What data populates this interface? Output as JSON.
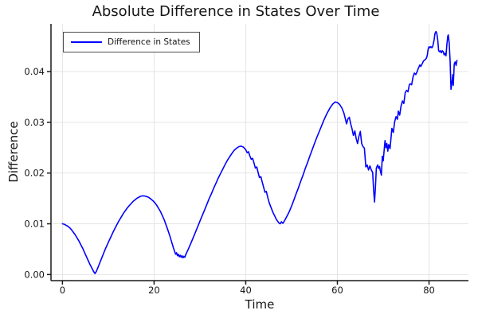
{
  "chart_data": {
    "type": "line",
    "title": "Absolute Difference in States Over Time",
    "xlabel": "Time",
    "ylabel": "Difference",
    "x_ticks": [
      0,
      20,
      40,
      60,
      80
    ],
    "x_tick_labels": [
      "0",
      "20",
      "40",
      "60",
      "80"
    ],
    "y_ticks": [
      0.0,
      0.01,
      0.02,
      0.03,
      0.04
    ],
    "y_tick_labels": [
      "0.00",
      "0.01",
      "0.02",
      "0.03",
      "0.04"
    ],
    "xlim": [
      -2.5,
      88.6
    ],
    "ylim": [
      -0.0012,
      0.0494
    ],
    "grid": true,
    "legend_position": "top-left",
    "series": [
      {
        "name": "Difference in States",
        "color": "#0000ff",
        "points": [
          [
            0,
            0.01
          ],
          [
            0.4,
            0.0099
          ],
          [
            0.8,
            0.0097
          ],
          [
            1.2,
            0.0095
          ],
          [
            1.6,
            0.0092
          ],
          [
            2,
            0.0088
          ],
          [
            2.4,
            0.0083
          ],
          [
            2.8,
            0.0078
          ],
          [
            3.2,
            0.0072
          ],
          [
            3.6,
            0.0066
          ],
          [
            4,
            0.0059
          ],
          [
            4.4,
            0.0052
          ],
          [
            4.8,
            0.0044
          ],
          [
            5.2,
            0.0036
          ],
          [
            5.6,
            0.0028
          ],
          [
            6,
            0.002
          ],
          [
            6.4,
            0.0013
          ],
          [
            6.8,
            0.0006
          ],
          [
            7.1,
            0.0002
          ],
          [
            7.4,
            0.0006
          ],
          [
            7.8,
            0.0015
          ],
          [
            8.2,
            0.0024
          ],
          [
            8.6,
            0.0033
          ],
          [
            9,
            0.0042
          ],
          [
            9.4,
            0.0051
          ],
          [
            9.8,
            0.0059
          ],
          [
            10.2,
            0.0067
          ],
          [
            10.6,
            0.0075
          ],
          [
            11,
            0.0083
          ],
          [
            11.4,
            0.009
          ],
          [
            11.8,
            0.0097
          ],
          [
            12.2,
            0.0104
          ],
          [
            12.6,
            0.011
          ],
          [
            13,
            0.0116
          ],
          [
            13.4,
            0.0122
          ],
          [
            13.8,
            0.0127
          ],
          [
            14.2,
            0.0132
          ],
          [
            14.6,
            0.0136
          ],
          [
            15,
            0.014
          ],
          [
            15.4,
            0.0144
          ],
          [
            15.8,
            0.0147
          ],
          [
            16.2,
            0.015
          ],
          [
            16.6,
            0.0152
          ],
          [
            17,
            0.0154
          ],
          [
            17.4,
            0.0155
          ],
          [
            17.8,
            0.0155
          ],
          [
            18.2,
            0.0154
          ],
          [
            18.6,
            0.0153
          ],
          [
            19,
            0.0151
          ],
          [
            19.4,
            0.0148
          ],
          [
            19.8,
            0.0145
          ],
          [
            20.2,
            0.0141
          ],
          [
            20.6,
            0.0136
          ],
          [
            21,
            0.013
          ],
          [
            21.4,
            0.0124
          ],
          [
            21.8,
            0.0116
          ],
          [
            22.2,
            0.0108
          ],
          [
            22.6,
            0.0098
          ],
          [
            23,
            0.0088
          ],
          [
            23.4,
            0.0077
          ],
          [
            23.8,
            0.0065
          ],
          [
            24.2,
            0.0053
          ],
          [
            24.5,
            0.0045
          ],
          [
            24.7,
            0.004
          ],
          [
            24.9,
            0.0043
          ],
          [
            25.1,
            0.0037
          ],
          [
            25.3,
            0.004
          ],
          [
            25.5,
            0.0035
          ],
          [
            25.7,
            0.0038
          ],
          [
            25.9,
            0.0034
          ],
          [
            26.1,
            0.0037
          ],
          [
            26.3,
            0.0033
          ],
          [
            26.5,
            0.0036
          ],
          [
            26.7,
            0.0034
          ],
          [
            26.9,
            0.0039
          ],
          [
            27.1,
            0.0043
          ],
          [
            27.5,
            0.0051
          ],
          [
            28,
            0.0061
          ],
          [
            28.5,
            0.0072
          ],
          [
            29,
            0.0083
          ],
          [
            29.5,
            0.0094
          ],
          [
            30,
            0.0105
          ],
          [
            30.5,
            0.0116
          ],
          [
            31,
            0.0127
          ],
          [
            31.5,
            0.0138
          ],
          [
            32,
            0.0149
          ],
          [
            32.5,
            0.0159
          ],
          [
            33,
            0.017
          ],
          [
            33.5,
            0.018
          ],
          [
            34,
            0.019
          ],
          [
            34.5,
            0.0199
          ],
          [
            35,
            0.0208
          ],
          [
            35.5,
            0.0217
          ],
          [
            36,
            0.0225
          ],
          [
            36.5,
            0.0232
          ],
          [
            37,
            0.0239
          ],
          [
            37.5,
            0.0245
          ],
          [
            38,
            0.0249
          ],
          [
            38.5,
            0.0252
          ],
          [
            39,
            0.0253
          ],
          [
            39.5,
            0.0251
          ],
          [
            40,
            0.0246
          ],
          [
            40.3,
            0.024
          ],
          [
            40.6,
            0.0242
          ],
          [
            40.9,
            0.0234
          ],
          [
            41.2,
            0.0227
          ],
          [
            41.5,
            0.0229
          ],
          [
            41.8,
            0.022
          ],
          [
            42.1,
            0.021
          ],
          [
            42.4,
            0.0212
          ],
          [
            42.7,
            0.0201
          ],
          [
            43,
            0.0191
          ],
          [
            43.3,
            0.0193
          ],
          [
            43.6,
            0.0182
          ],
          [
            43.9,
            0.0172
          ],
          [
            44.2,
            0.0162
          ],
          [
            44.5,
            0.0164
          ],
          [
            44.8,
            0.0152
          ],
          [
            45.1,
            0.0142
          ],
          [
            45.4,
            0.0135
          ],
          [
            45.7,
            0.0128
          ],
          [
            46,
            0.0121
          ],
          [
            46.3,
            0.0116
          ],
          [
            46.6,
            0.011
          ],
          [
            46.9,
            0.0106
          ],
          [
            47.2,
            0.0102
          ],
          [
            47.5,
            0.01
          ],
          [
            47.8,
            0.0104
          ],
          [
            48.1,
            0.0101
          ],
          [
            48.4,
            0.0105
          ],
          [
            48.7,
            0.011
          ],
          [
            49,
            0.0115
          ],
          [
            49.5,
            0.0124
          ],
          [
            50,
            0.0135
          ],
          [
            50.5,
            0.0147
          ],
          [
            51,
            0.0159
          ],
          [
            51.5,
            0.0171
          ],
          [
            52,
            0.0184
          ],
          [
            52.5,
            0.0196
          ],
          [
            53,
            0.0209
          ],
          [
            53.5,
            0.0221
          ],
          [
            54,
            0.0234
          ],
          [
            54.5,
            0.0246
          ],
          [
            55,
            0.0258
          ],
          [
            55.5,
            0.027
          ],
          [
            56,
            0.0281
          ],
          [
            56.5,
            0.0292
          ],
          [
            57,
            0.0303
          ],
          [
            57.5,
            0.0313
          ],
          [
            58,
            0.0322
          ],
          [
            58.5,
            0.033
          ],
          [
            59,
            0.0336
          ],
          [
            59.5,
            0.034
          ],
          [
            60,
            0.0339
          ],
          [
            60.5,
            0.0335
          ],
          [
            61,
            0.0328
          ],
          [
            61.4,
            0.0319
          ],
          [
            61.7,
            0.0308
          ],
          [
            62,
            0.0297
          ],
          [
            62.3,
            0.0307
          ],
          [
            62.6,
            0.031
          ],
          [
            62.9,
            0.0297
          ],
          [
            63.2,
            0.0287
          ],
          [
            63.5,
            0.0274
          ],
          [
            63.8,
            0.0283
          ],
          [
            64.1,
            0.0268
          ],
          [
            64.4,
            0.0258
          ],
          [
            64.7,
            0.0272
          ],
          [
            65,
            0.0282
          ],
          [
            65.3,
            0.0258
          ],
          [
            65.6,
            0.0252
          ],
          [
            65.9,
            0.0249
          ],
          [
            66.2,
            0.0212
          ],
          [
            66.5,
            0.0216
          ],
          [
            66.8,
            0.0206
          ],
          [
            67.1,
            0.0214
          ],
          [
            67.4,
            0.0206
          ],
          [
            67.7,
            0.0201
          ],
          [
            67.9,
            0.0168
          ],
          [
            68.1,
            0.0143
          ],
          [
            68.3,
            0.017
          ],
          [
            68.5,
            0.021
          ],
          [
            68.8,
            0.0216
          ],
          [
            69,
            0.0209
          ],
          [
            69.2,
            0.0213
          ],
          [
            69.4,
            0.0203
          ],
          [
            69.6,
            0.0196
          ],
          [
            69.8,
            0.0233
          ],
          [
            70,
            0.0224
          ],
          [
            70.2,
            0.0245
          ],
          [
            70.4,
            0.0264
          ],
          [
            70.6,
            0.025
          ],
          [
            70.8,
            0.0258
          ],
          [
            71,
            0.0243
          ],
          [
            71.2,
            0.0256
          ],
          [
            71.5,
            0.0248
          ],
          [
            71.9,
            0.0288
          ],
          [
            72.2,
            0.028
          ],
          [
            72.5,
            0.0301
          ],
          [
            72.8,
            0.0311
          ],
          [
            73.1,
            0.0306
          ],
          [
            73.3,
            0.0322
          ],
          [
            73.6,
            0.0314
          ],
          [
            73.9,
            0.0332
          ],
          [
            74.2,
            0.0342
          ],
          [
            74.5,
            0.0337
          ],
          [
            74.8,
            0.0358
          ],
          [
            75.1,
            0.0363
          ],
          [
            75.4,
            0.036
          ],
          [
            75.7,
            0.0374
          ],
          [
            75.9,
            0.0376
          ],
          [
            76.2,
            0.0374
          ],
          [
            76.5,
            0.0389
          ],
          [
            76.8,
            0.0397
          ],
          [
            77.1,
            0.0394
          ],
          [
            77.4,
            0.04
          ],
          [
            77.7,
            0.0407
          ],
          [
            78,
            0.0413
          ],
          [
            78.2,
            0.041
          ],
          [
            78.5,
            0.0415
          ],
          [
            78.8,
            0.0421
          ],
          [
            79.1,
            0.0423
          ],
          [
            79.4,
            0.0426
          ],
          [
            79.6,
            0.0431
          ],
          [
            79.8,
            0.0444
          ],
          [
            80,
            0.0449
          ],
          [
            80.2,
            0.0447
          ],
          [
            80.4,
            0.0449
          ],
          [
            80.6,
            0.0447
          ],
          [
            80.8,
            0.0449
          ],
          [
            81.1,
            0.0462
          ],
          [
            81.3,
            0.0475
          ],
          [
            81.5,
            0.0479
          ],
          [
            81.7,
            0.0475
          ],
          [
            81.9,
            0.0462
          ],
          [
            82.1,
            0.0441
          ],
          [
            82.3,
            0.0439
          ],
          [
            82.5,
            0.0441
          ],
          [
            82.7,
            0.0437
          ],
          [
            82.9,
            0.0441
          ],
          [
            83.1,
            0.0439
          ],
          [
            83.3,
            0.0433
          ],
          [
            83.5,
            0.0436
          ],
          [
            83.7,
            0.0431
          ],
          [
            83.9,
            0.0454
          ],
          [
            84.1,
            0.047
          ],
          [
            84.2,
            0.0472
          ],
          [
            84.4,
            0.0457
          ],
          [
            84.6,
            0.0421
          ],
          [
            84.8,
            0.0365
          ],
          [
            85,
            0.0378
          ],
          [
            85.2,
            0.0394
          ],
          [
            85.3,
            0.0373
          ],
          [
            85.5,
            0.0415
          ],
          [
            85.7,
            0.0419
          ],
          [
            85.9,
            0.0412
          ],
          [
            86.1,
            0.0422
          ]
        ]
      }
    ]
  },
  "colors": {
    "line": "#0000ff",
    "grid": "#e4e4e4",
    "axis": "#1a1a1a",
    "text": "#151515",
    "legend_border": "#4d4d4d",
    "background": "#ffffff"
  }
}
